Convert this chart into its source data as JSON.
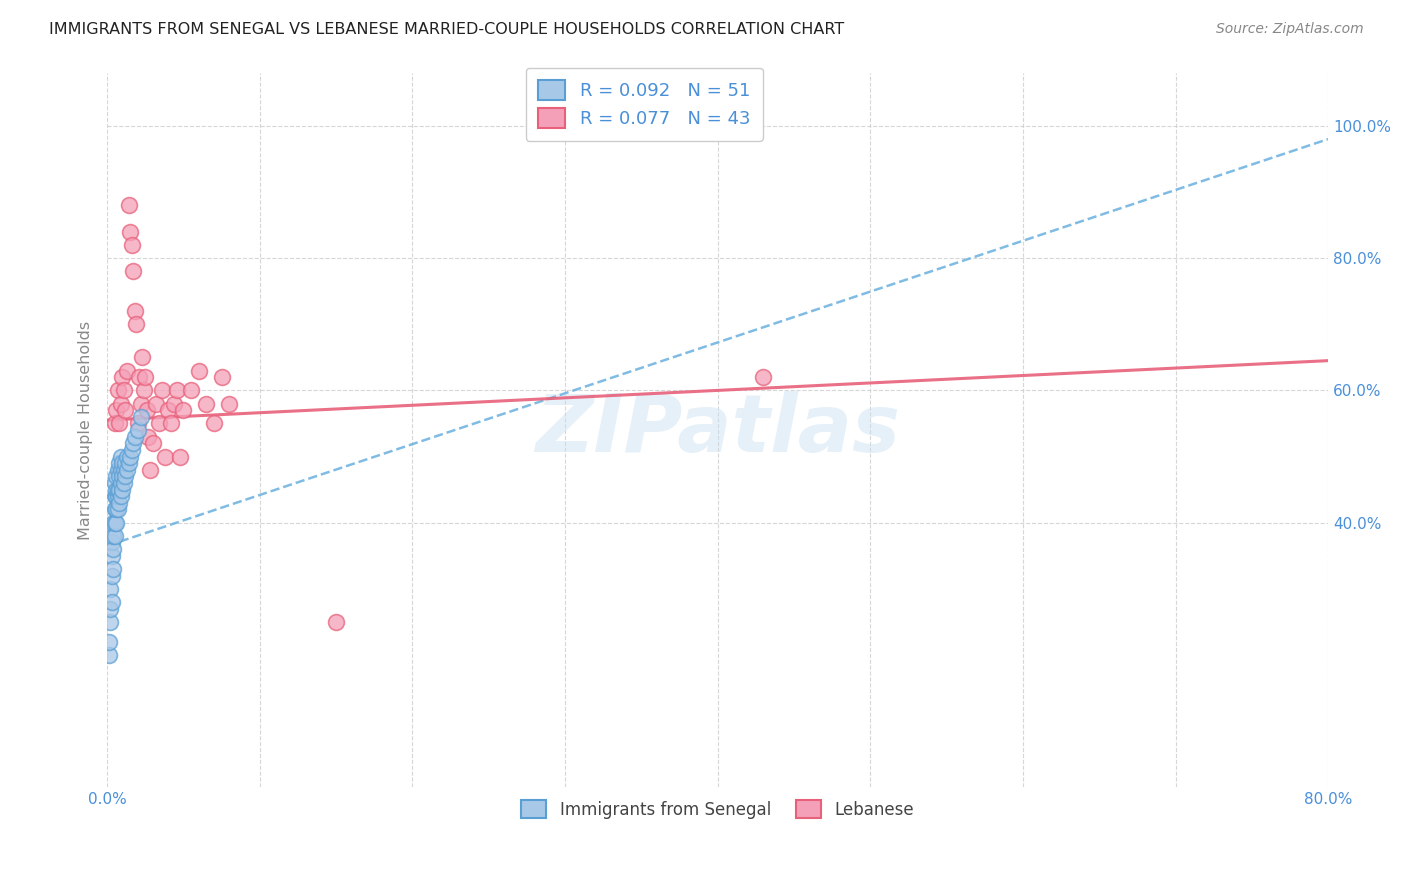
{
  "title": "IMMIGRANTS FROM SENEGAL VS LEBANESE MARRIED-COUPLE HOUSEHOLDS CORRELATION CHART",
  "source": "Source: ZipAtlas.com",
  "ylabel": "Married-couple Households",
  "xlim": [
    0.0,
    0.8
  ],
  "ylim": [
    0.0,
    1.08
  ],
  "ytick_positions": [
    0.4,
    0.6,
    0.8,
    1.0
  ],
  "ytick_labels": [
    "40.0%",
    "60.0%",
    "80.0%",
    "100.0%"
  ],
  "blue_R": "R = 0.092",
  "blue_N": "N = 51",
  "pink_R": "R = 0.077",
  "pink_N": "N = 43",
  "legend_labels": [
    "Immigrants from Senegal",
    "Lebanese"
  ],
  "blue_color": "#a8c8e8",
  "pink_color": "#f4a0b8",
  "blue_edge_color": "#5a9fd4",
  "pink_edge_color": "#e8607a",
  "blue_line_color": "#6ab0e0",
  "pink_line_color": "#e8607a",
  "watermark": "ZIPatlas",
  "blue_scatter_x": [
    0.001,
    0.001,
    0.002,
    0.002,
    0.002,
    0.003,
    0.003,
    0.003,
    0.003,
    0.004,
    0.004,
    0.004,
    0.004,
    0.005,
    0.005,
    0.005,
    0.005,
    0.005,
    0.006,
    0.006,
    0.006,
    0.006,
    0.006,
    0.007,
    0.007,
    0.007,
    0.007,
    0.008,
    0.008,
    0.008,
    0.008,
    0.009,
    0.009,
    0.009,
    0.009,
    0.01,
    0.01,
    0.01,
    0.011,
    0.011,
    0.012,
    0.012,
    0.013,
    0.013,
    0.014,
    0.015,
    0.016,
    0.017,
    0.018,
    0.02,
    0.022
  ],
  "blue_scatter_y": [
    0.2,
    0.22,
    0.25,
    0.27,
    0.3,
    0.28,
    0.32,
    0.35,
    0.37,
    0.33,
    0.36,
    0.38,
    0.4,
    0.38,
    0.4,
    0.42,
    0.44,
    0.46,
    0.4,
    0.42,
    0.44,
    0.45,
    0.47,
    0.42,
    0.44,
    0.45,
    0.48,
    0.43,
    0.45,
    0.47,
    0.49,
    0.44,
    0.46,
    0.48,
    0.5,
    0.45,
    0.47,
    0.49,
    0.46,
    0.48,
    0.47,
    0.49,
    0.48,
    0.5,
    0.49,
    0.5,
    0.51,
    0.52,
    0.53,
    0.54,
    0.56
  ],
  "pink_scatter_x": [
    0.005,
    0.006,
    0.007,
    0.008,
    0.009,
    0.01,
    0.011,
    0.012,
    0.013,
    0.014,
    0.015,
    0.016,
    0.017,
    0.018,
    0.019,
    0.02,
    0.021,
    0.022,
    0.023,
    0.024,
    0.025,
    0.026,
    0.027,
    0.028,
    0.03,
    0.032,
    0.034,
    0.036,
    0.038,
    0.04,
    0.042,
    0.044,
    0.046,
    0.048,
    0.05,
    0.055,
    0.06,
    0.065,
    0.07,
    0.075,
    0.08,
    0.43,
    0.15
  ],
  "pink_scatter_y": [
    0.55,
    0.57,
    0.6,
    0.55,
    0.58,
    0.62,
    0.6,
    0.57,
    0.63,
    0.88,
    0.84,
    0.82,
    0.78,
    0.72,
    0.7,
    0.55,
    0.62,
    0.58,
    0.65,
    0.6,
    0.62,
    0.57,
    0.53,
    0.48,
    0.52,
    0.58,
    0.55,
    0.6,
    0.5,
    0.57,
    0.55,
    0.58,
    0.6,
    0.5,
    0.57,
    0.6,
    0.63,
    0.58,
    0.55,
    0.62,
    0.58,
    0.62,
    0.25
  ],
  "blue_trend_x": [
    0.0,
    0.8
  ],
  "blue_trend_y": [
    0.365,
    0.98
  ],
  "pink_trend_x": [
    0.0,
    0.8
  ],
  "pink_trend_y": [
    0.555,
    0.645
  ]
}
